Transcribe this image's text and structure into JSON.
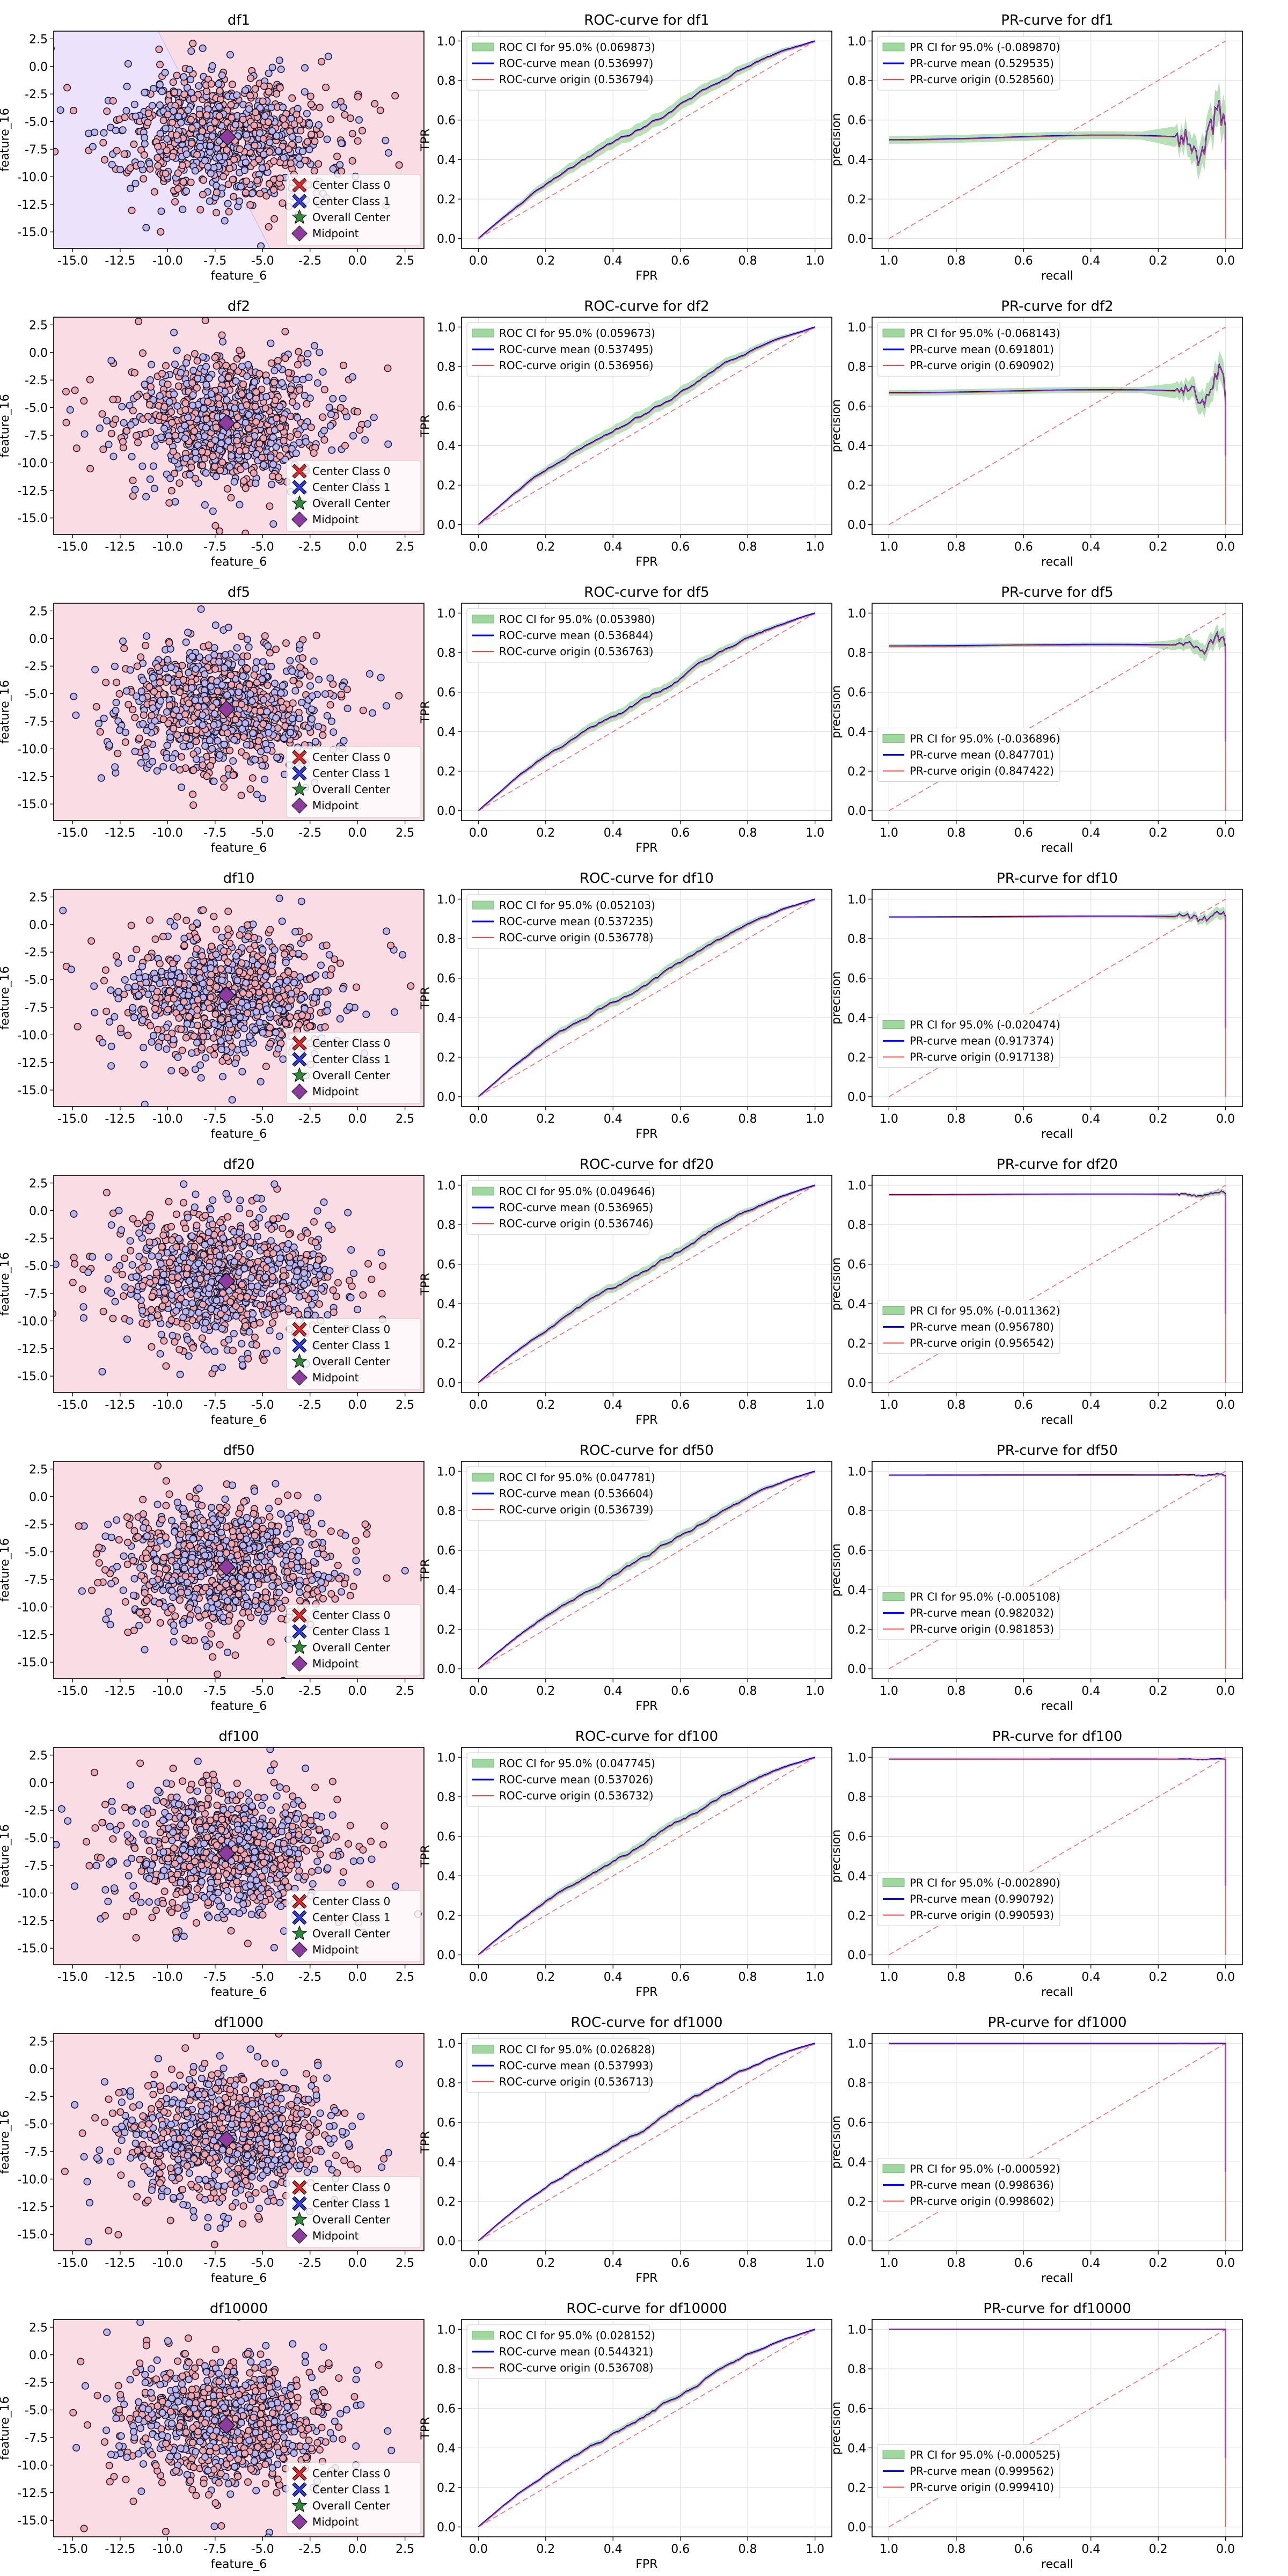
{
  "legend_labels": {
    "scatter": [
      "Center Class 0",
      "Center Class 1",
      "Overall Center",
      "Midpoint"
    ],
    "roc_ci_prefix": "ROC CI for 95.0%",
    "roc_mean_prefix": "ROC-curve mean",
    "roc_origin_prefix": "ROC-curve origin",
    "pr_ci_prefix": "PR CI for 95.0%",
    "pr_mean_prefix": "PR-curve mean",
    "pr_origin_prefix": "PR-curve origin"
  },
  "colors": {
    "class0_region": "#fadce5",
    "class1_region": "#ece2fb",
    "center_class0": "#ee2222",
    "center_class1": "#2a3cee",
    "overall_center": "#2e8b3a",
    "midpoint": "#8e3aa0",
    "ci_band": "#9fd89f",
    "mean_line": "#0000ff",
    "origin_line": "#ff4444",
    "diagonal": "#ff6b6b"
  },
  "chart_data": [
    {
      "row": 0,
      "dataset": "df1",
      "type": "scatter",
      "title": "df1",
      "xlabel": "feature_6",
      "ylabel": "feature_16",
      "xlim": [
        -16,
        3.5
      ],
      "ylim": [
        -16.5,
        3.2
      ],
      "xticks": [
        -15,
        -12.5,
        -10,
        -7.5,
        -5,
        -2.5,
        0,
        2.5
      ],
      "yticks": [
        -15,
        -12.5,
        -10,
        -7.5,
        -5,
        -2.5,
        0,
        2.5
      ],
      "boundary": "class1_left",
      "centers": {
        "class0": [
          -6.7,
          -6.3
        ],
        "class1": [
          -7.0,
          -6.5
        ],
        "overall": [
          -6.85,
          -6.4
        ],
        "midpoint": [
          -6.85,
          -6.4
        ]
      },
      "legend": "lower right",
      "grid": false
    },
    {
      "row": 0,
      "dataset": "df1",
      "type": "line",
      "subtype": "roc",
      "title": "ROC-curve for df1",
      "xlabel": "FPR",
      "ylabel": "TPR",
      "xlim": [
        -0.05,
        1.05
      ],
      "ylim": [
        -0.05,
        1.05
      ],
      "ticks": [
        0,
        0.2,
        0.4,
        0.6,
        0.8,
        1.0
      ],
      "ci": "0.069873",
      "mean": "0.536997",
      "origin": "0.536794",
      "ci_width": 0.03,
      "legend": "upper left",
      "grid": true
    },
    {
      "row": 0,
      "dataset": "df1",
      "type": "line",
      "subtype": "pr",
      "title": "PR-curve for df1",
      "xlabel": "recall",
      "ylabel": "precision",
      "xlim": [
        1.05,
        -0.05
      ],
      "ylim": [
        -0.05,
        1.05
      ],
      "ticks": [
        1.0,
        0.8,
        0.6,
        0.4,
        0.2,
        0.0
      ],
      "ci": "-0.089870",
      "mean": "0.529535",
      "origin": "0.528560",
      "baseline": 0.5,
      "ci_width": 0.04,
      "legend": "upper left",
      "grid": true
    },
    {
      "row": 1,
      "dataset": "df2",
      "type": "scatter",
      "title": "df2",
      "xlabel": "feature_6",
      "ylabel": "feature_16",
      "xlim": [
        -16,
        3.5
      ],
      "ylim": [
        -16.5,
        3.2
      ],
      "xticks": [
        -15,
        -12.5,
        -10,
        -7.5,
        -5,
        -2.5,
        0,
        2.5
      ],
      "yticks": [
        -15,
        -12.5,
        -10,
        -7.5,
        -5,
        -2.5,
        0,
        2.5
      ],
      "boundary": "none",
      "centers": {
        "class0": [
          -6.8,
          -6.3
        ],
        "class1": [
          -7.0,
          -6.5
        ],
        "overall": [
          -6.9,
          -6.4
        ],
        "midpoint": [
          -6.9,
          -6.4
        ]
      },
      "legend": "lower right",
      "grid": false
    },
    {
      "row": 1,
      "dataset": "df2",
      "type": "line",
      "subtype": "roc",
      "title": "ROC-curve for df2",
      "xlabel": "FPR",
      "ylabel": "TPR",
      "xlim": [
        -0.05,
        1.05
      ],
      "ylim": [
        -0.05,
        1.05
      ],
      "ticks": [
        0,
        0.2,
        0.4,
        0.6,
        0.8,
        1.0
      ],
      "ci": "0.059673",
      "mean": "0.537495",
      "origin": "0.536956",
      "ci_width": 0.025,
      "legend": "upper left",
      "grid": true
    },
    {
      "row": 1,
      "dataset": "df2",
      "type": "line",
      "subtype": "pr",
      "title": "PR-curve for df2",
      "xlabel": "recall",
      "ylabel": "precision",
      "xlim": [
        1.05,
        -0.05
      ],
      "ylim": [
        -0.05,
        1.05
      ],
      "ticks": [
        1.0,
        0.8,
        0.6,
        0.4,
        0.2,
        0.0
      ],
      "ci": "-0.068143",
      "mean": "0.691801",
      "origin": "0.690902",
      "baseline": 0.667,
      "ci_width": 0.03,
      "legend": "upper left",
      "grid": true
    },
    {
      "row": 2,
      "dataset": "df5",
      "type": "scatter",
      "title": "df5",
      "xlabel": "feature_6",
      "ylabel": "feature_16",
      "xlim": [
        -16,
        3.5
      ],
      "ylim": [
        -16.5,
        3.2
      ],
      "xticks": [
        -15,
        -12.5,
        -10,
        -7.5,
        -5,
        -2.5,
        0,
        2.5
      ],
      "yticks": [
        -15,
        -12.5,
        -10,
        -7.5,
        -5,
        -2.5,
        0,
        2.5
      ],
      "boundary": "none",
      "centers": {
        "class0": [
          -6.8,
          -6.3
        ],
        "class1": [
          -7.0,
          -6.5
        ],
        "overall": [
          -6.9,
          -6.4
        ],
        "midpoint": [
          -6.9,
          -6.4
        ]
      },
      "legend": "lower right",
      "grid": false
    },
    {
      "row": 2,
      "dataset": "df5",
      "type": "line",
      "subtype": "roc",
      "title": "ROC-curve for df5",
      "xlabel": "FPR",
      "ylabel": "TPR",
      "xlim": [
        -0.05,
        1.05
      ],
      "ylim": [
        -0.05,
        1.05
      ],
      "ticks": [
        0,
        0.2,
        0.4,
        0.6,
        0.8,
        1.0
      ],
      "ci": "0.053980",
      "mean": "0.536844",
      "origin": "0.536763",
      "ci_width": 0.022,
      "legend": "upper left",
      "grid": true
    },
    {
      "row": 2,
      "dataset": "df5",
      "type": "line",
      "subtype": "pr",
      "title": "PR-curve for df5",
      "xlabel": "recall",
      "ylabel": "precision",
      "xlim": [
        1.05,
        -0.05
      ],
      "ylim": [
        -0.05,
        1.05
      ],
      "ticks": [
        1.0,
        0.8,
        0.6,
        0.4,
        0.2,
        0.0
      ],
      "ci": "-0.036896",
      "mean": "0.847701",
      "origin": "0.847422",
      "baseline": 0.833,
      "ci_width": 0.02,
      "legend": "center left",
      "grid": true
    },
    {
      "row": 3,
      "dataset": "df10",
      "type": "scatter",
      "title": "df10",
      "xlabel": "feature_6",
      "ylabel": "feature_16",
      "xlim": [
        -16,
        3.5
      ],
      "ylim": [
        -16.5,
        3.2
      ],
      "xticks": [
        -15,
        -12.5,
        -10,
        -7.5,
        -5,
        -2.5,
        0,
        2.5
      ],
      "yticks": [
        -15,
        -12.5,
        -10,
        -7.5,
        -5,
        -2.5,
        0,
        2.5
      ],
      "boundary": "none",
      "centers": {
        "class0": [
          -6.8,
          -6.3
        ],
        "class1": [
          -7.0,
          -6.5
        ],
        "overall": [
          -6.9,
          -6.4
        ],
        "midpoint": [
          -6.9,
          -6.4
        ]
      },
      "legend": "lower right",
      "grid": false
    },
    {
      "row": 3,
      "dataset": "df10",
      "type": "line",
      "subtype": "roc",
      "title": "ROC-curve for df10",
      "xlabel": "FPR",
      "ylabel": "TPR",
      "xlim": [
        -0.05,
        1.05
      ],
      "ylim": [
        -0.05,
        1.05
      ],
      "ticks": [
        0,
        0.2,
        0.4,
        0.6,
        0.8,
        1.0
      ],
      "ci": "0.052103",
      "mean": "0.537235",
      "origin": "0.536778",
      "ci_width": 0.02,
      "legend": "upper left",
      "grid": true
    },
    {
      "row": 3,
      "dataset": "df10",
      "type": "line",
      "subtype": "pr",
      "title": "PR-curve for df10",
      "xlabel": "recall",
      "ylabel": "precision",
      "xlim": [
        1.05,
        -0.05
      ],
      "ylim": [
        -0.05,
        1.05
      ],
      "ticks": [
        1.0,
        0.8,
        0.6,
        0.4,
        0.2,
        0.0
      ],
      "ci": "-0.020474",
      "mean": "0.917374",
      "origin": "0.917138",
      "baseline": 0.909,
      "ci_width": 0.012,
      "legend": "center left",
      "grid": true
    },
    {
      "row": 4,
      "dataset": "df20",
      "type": "scatter",
      "title": "df20",
      "xlabel": "feature_6",
      "ylabel": "feature_16",
      "xlim": [
        -16,
        3.5
      ],
      "ylim": [
        -16.5,
        3.2
      ],
      "xticks": [
        -15,
        -12.5,
        -10,
        -7.5,
        -5,
        -2.5,
        0,
        2.5
      ],
      "yticks": [
        -15,
        -12.5,
        -10,
        -7.5,
        -5,
        -2.5,
        0,
        2.5
      ],
      "boundary": "none",
      "centers": {
        "class0": [
          -6.8,
          -6.3
        ],
        "class1": [
          -7.0,
          -6.5
        ],
        "overall": [
          -6.9,
          -6.4
        ],
        "midpoint": [
          -6.9,
          -6.4
        ]
      },
      "legend": "lower right",
      "grid": false
    },
    {
      "row": 4,
      "dataset": "df20",
      "type": "line",
      "subtype": "roc",
      "title": "ROC-curve for df20",
      "xlabel": "FPR",
      "ylabel": "TPR",
      "xlim": [
        -0.05,
        1.05
      ],
      "ylim": [
        -0.05,
        1.05
      ],
      "ticks": [
        0,
        0.2,
        0.4,
        0.6,
        0.8,
        1.0
      ],
      "ci": "0.049646",
      "mean": "0.536965",
      "origin": "0.536746",
      "ci_width": 0.02,
      "legend": "upper left",
      "grid": true
    },
    {
      "row": 4,
      "dataset": "df20",
      "type": "line",
      "subtype": "pr",
      "title": "PR-curve for df20",
      "xlabel": "recall",
      "ylabel": "precision",
      "xlim": [
        1.05,
        -0.05
      ],
      "ylim": [
        -0.05,
        1.05
      ],
      "ticks": [
        1.0,
        0.8,
        0.6,
        0.4,
        0.2,
        0.0
      ],
      "ci": "-0.011362",
      "mean": "0.956780",
      "origin": "0.956542",
      "baseline": 0.952,
      "ci_width": 0.006,
      "legend": "center left",
      "grid": true
    },
    {
      "row": 5,
      "dataset": "df50",
      "type": "scatter",
      "title": "df50",
      "xlabel": "feature_6",
      "ylabel": "feature_16",
      "xlim": [
        -16,
        3.5
      ],
      "ylim": [
        -16.5,
        3.2
      ],
      "xticks": [
        -15,
        -12.5,
        -10,
        -7.5,
        -5,
        -2.5,
        0,
        2.5
      ],
      "yticks": [
        -15,
        -12.5,
        -10,
        -7.5,
        -5,
        -2.5,
        0,
        2.5
      ],
      "boundary": "none",
      "centers": {
        "class0": [
          -6.8,
          -6.3
        ],
        "class1": [
          -7.0,
          -6.5
        ],
        "overall": [
          -6.9,
          -6.4
        ],
        "midpoint": [
          -6.9,
          -6.4
        ]
      },
      "legend": "lower right",
      "grid": false
    },
    {
      "row": 5,
      "dataset": "df50",
      "type": "line",
      "subtype": "roc",
      "title": "ROC-curve for df50",
      "xlabel": "FPR",
      "ylabel": "TPR",
      "xlim": [
        -0.05,
        1.05
      ],
      "ylim": [
        -0.05,
        1.05
      ],
      "ticks": [
        0,
        0.2,
        0.4,
        0.6,
        0.8,
        1.0
      ],
      "ci": "0.047781",
      "mean": "0.536604",
      "origin": "0.536739",
      "ci_width": 0.018,
      "legend": "upper left",
      "grid": true
    },
    {
      "row": 5,
      "dataset": "df50",
      "type": "line",
      "subtype": "pr",
      "title": "PR-curve for df50",
      "xlabel": "recall",
      "ylabel": "precision",
      "xlim": [
        1.05,
        -0.05
      ],
      "ylim": [
        -0.05,
        1.05
      ],
      "ticks": [
        1.0,
        0.8,
        0.6,
        0.4,
        0.2,
        0.0
      ],
      "ci": "-0.005108",
      "mean": "0.982032",
      "origin": "0.981853",
      "baseline": 0.98,
      "ci_width": 0.003,
      "legend": "center left",
      "grid": true
    },
    {
      "row": 6,
      "dataset": "df100",
      "type": "scatter",
      "title": "df100",
      "xlabel": "feature_6",
      "ylabel": "feature_16",
      "xlim": [
        -16,
        3.5
      ],
      "ylim": [
        -16.5,
        3.2
      ],
      "xticks": [
        -15,
        -12.5,
        -10,
        -7.5,
        -5,
        -2.5,
        0,
        2.5
      ],
      "yticks": [
        -15,
        -12.5,
        -10,
        -7.5,
        -5,
        -2.5,
        0,
        2.5
      ],
      "boundary": "none",
      "centers": {
        "class0": [
          -6.8,
          -6.3
        ],
        "class1": [
          -7.0,
          -6.5
        ],
        "overall": [
          -6.9,
          -6.4
        ],
        "midpoint": [
          -6.9,
          -6.4
        ]
      },
      "legend": "lower right",
      "grid": false
    },
    {
      "row": 6,
      "dataset": "df100",
      "type": "line",
      "subtype": "roc",
      "title": "ROC-curve for df100",
      "xlabel": "FPR",
      "ylabel": "TPR",
      "xlim": [
        -0.05,
        1.05
      ],
      "ylim": [
        -0.05,
        1.05
      ],
      "ticks": [
        0,
        0.2,
        0.4,
        0.6,
        0.8,
        1.0
      ],
      "ci": "0.047745",
      "mean": "0.537026",
      "origin": "0.536732",
      "ci_width": 0.018,
      "legend": "upper left",
      "grid": true
    },
    {
      "row": 6,
      "dataset": "df100",
      "type": "line",
      "subtype": "pr",
      "title": "PR-curve for df100",
      "xlabel": "recall",
      "ylabel": "precision",
      "xlim": [
        1.05,
        -0.05
      ],
      "ylim": [
        -0.05,
        1.05
      ],
      "ticks": [
        1.0,
        0.8,
        0.6,
        0.4,
        0.2,
        0.0
      ],
      "ci": "-0.002890",
      "mean": "0.990792",
      "origin": "0.990593",
      "baseline": 0.99,
      "ci_width": 0.002,
      "legend": "center left",
      "grid": true
    },
    {
      "row": 7,
      "dataset": "df1000",
      "type": "scatter",
      "title": "df1000",
      "xlabel": "feature_6",
      "ylabel": "feature_16",
      "xlim": [
        -16,
        3.5
      ],
      "ylim": [
        -16.5,
        3.2
      ],
      "xticks": [
        -15,
        -12.5,
        -10,
        -7.5,
        -5,
        -2.5,
        0,
        2.5
      ],
      "yticks": [
        -15,
        -12.5,
        -10,
        -7.5,
        -5,
        -2.5,
        0,
        2.5
      ],
      "boundary": "none",
      "centers": {
        "class0": [
          -6.8,
          -6.3
        ],
        "class1": [
          -7.0,
          -6.5
        ],
        "overall": [
          -6.9,
          -6.4
        ],
        "midpoint": [
          -6.9,
          -6.4
        ]
      },
      "legend": "lower right",
      "grid": false
    },
    {
      "row": 7,
      "dataset": "df1000",
      "type": "line",
      "subtype": "roc",
      "title": "ROC-curve for df1000",
      "xlabel": "FPR",
      "ylabel": "TPR",
      "xlim": [
        -0.05,
        1.05
      ],
      "ylim": [
        -0.05,
        1.05
      ],
      "ticks": [
        0,
        0.2,
        0.4,
        0.6,
        0.8,
        1.0
      ],
      "ci": "0.026828",
      "mean": "0.537993",
      "origin": "0.536713",
      "ci_width": 0.01,
      "legend": "upper left",
      "grid": true
    },
    {
      "row": 7,
      "dataset": "df1000",
      "type": "line",
      "subtype": "pr",
      "title": "PR-curve for df1000",
      "xlabel": "recall",
      "ylabel": "precision",
      "xlim": [
        1.05,
        -0.05
      ],
      "ylim": [
        -0.05,
        1.05
      ],
      "ticks": [
        1.0,
        0.8,
        0.6,
        0.4,
        0.2,
        0.0
      ],
      "ci": "-0.000592",
      "mean": "0.998636",
      "origin": "0.998602",
      "baseline": 0.999,
      "ci_width": 0.001,
      "legend": "center left",
      "grid": true
    },
    {
      "row": 8,
      "dataset": "df10000",
      "type": "scatter",
      "title": "df10000",
      "xlabel": "feature_6",
      "ylabel": "feature_16",
      "xlim": [
        -16,
        3.5
      ],
      "ylim": [
        -16.5,
        3.2
      ],
      "xticks": [
        -15,
        -12.5,
        -10,
        -7.5,
        -5,
        -2.5,
        0,
        2.5
      ],
      "yticks": [
        -15,
        -12.5,
        -10,
        -7.5,
        -5,
        -2.5,
        0,
        2.5
      ],
      "boundary": "none",
      "centers": {
        "class0": [
          -6.8,
          -6.3
        ],
        "class1": [
          -7.0,
          -6.5
        ],
        "overall": [
          -6.9,
          -6.4
        ],
        "midpoint": [
          -6.9,
          -6.4
        ]
      },
      "legend": "lower right",
      "grid": false
    },
    {
      "row": 8,
      "dataset": "df10000",
      "type": "line",
      "subtype": "roc",
      "title": "ROC-curve for df10000",
      "xlabel": "FPR",
      "ylabel": "TPR",
      "xlim": [
        -0.05,
        1.05
      ],
      "ylim": [
        -0.05,
        1.05
      ],
      "ticks": [
        0,
        0.2,
        0.4,
        0.6,
        0.8,
        1.0
      ],
      "ci": "0.028152",
      "mean": "0.544321",
      "origin": "0.536708",
      "ci_width": 0.012,
      "legend": "upper left",
      "grid": true
    },
    {
      "row": 8,
      "dataset": "df10000",
      "type": "line",
      "subtype": "pr",
      "title": "PR-curve for df10000",
      "xlabel": "recall",
      "ylabel": "precision",
      "xlim": [
        1.05,
        -0.05
      ],
      "ylim": [
        -0.05,
        1.05
      ],
      "ticks": [
        1.0,
        0.8,
        0.6,
        0.4,
        0.2,
        0.0
      ],
      "ci": "-0.000525",
      "mean": "0.999562",
      "origin": "0.999410",
      "baseline": 0.9999,
      "ci_width": 0.001,
      "legend": "center left",
      "grid": true
    }
  ]
}
